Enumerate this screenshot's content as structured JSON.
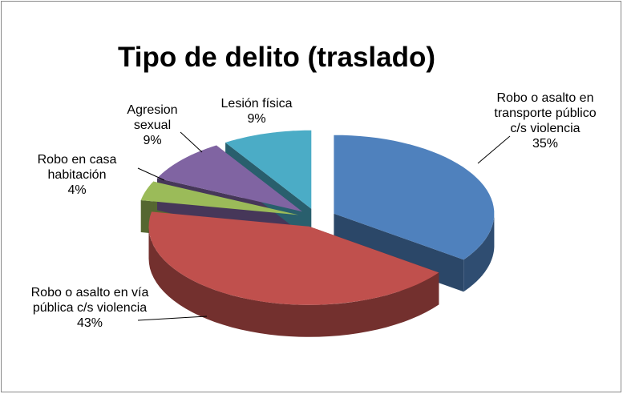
{
  "chart_data": {
    "type": "pie",
    "title": "Tipo de delito (traslado)",
    "categories": [
      "Robo o asalto en transporte público c/s violencia",
      "Robo o asalto en vía pública c/s violencia",
      "Robo en casa habitación",
      "Agresion sexual",
      "Lesión física"
    ],
    "values": [
      35,
      43,
      4,
      9,
      9
    ],
    "value_labels": [
      "35%",
      "43%",
      "4%",
      "9%",
      "9%"
    ],
    "colors": [
      "#4f81bd",
      "#c0504d",
      "#9bbb59",
      "#8064a2",
      "#4bacc6"
    ]
  }
}
